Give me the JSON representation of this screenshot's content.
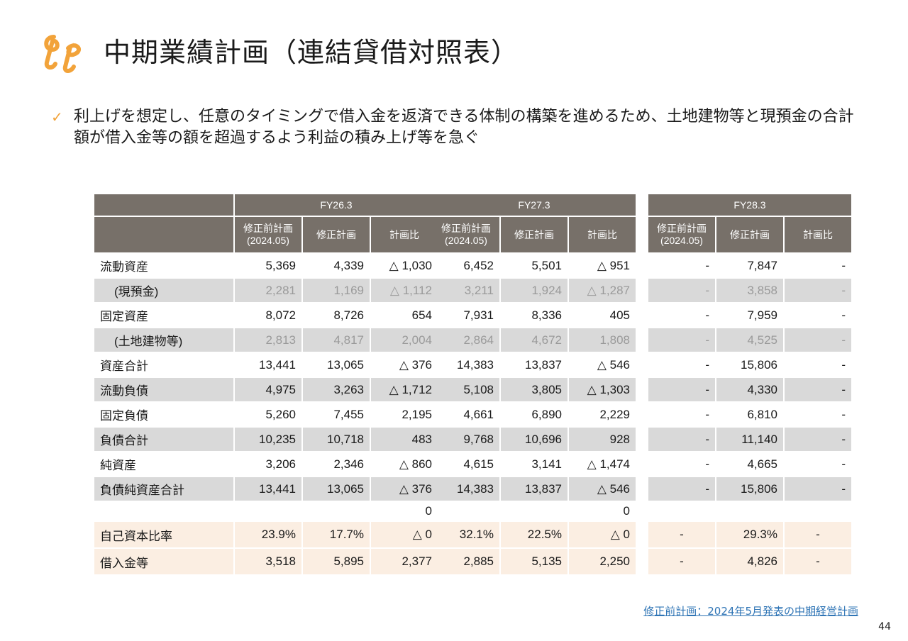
{
  "header": {
    "title": "中期業績計画（連結貸借対照表）"
  },
  "bullet": {
    "text": "利上げを想定し、任意のタイミングで借入金を返済できる体制の構築を進めるため、土地建物等と現預金の合計額が借入金等の額を超過するよう利益の積み上げ等を急ぐ"
  },
  "columns": {
    "pre": "修正前計画",
    "pre_date": "(2024.05)",
    "rev": "修正計画",
    "ratio": "計画比"
  },
  "years": [
    "FY26.3",
    "FY27.3",
    "FY28.3"
  ],
  "rows": [
    {
      "label": "流動資産",
      "style": "white",
      "v": [
        [
          "5,369",
          "4,339",
          "△ 1,030"
        ],
        [
          "6,452",
          "5,501",
          "△ 951"
        ],
        [
          "-",
          "7,847",
          "-"
        ]
      ]
    },
    {
      "label": "(現預金)",
      "style": "gray-sub",
      "v": [
        [
          "2,281",
          "1,169",
          "△ 1,112"
        ],
        [
          "3,211",
          "1,924",
          "△ 1,287"
        ],
        [
          "-",
          "3,858",
          "-"
        ]
      ]
    },
    {
      "label": "固定資産",
      "style": "white",
      "v": [
        [
          "8,072",
          "8,726",
          "654"
        ],
        [
          "7,931",
          "8,336",
          "405"
        ],
        [
          "-",
          "7,959",
          "-"
        ]
      ]
    },
    {
      "label": "(土地建物等)",
      "style": "gray-sub",
      "v": [
        [
          "2,813",
          "4,817",
          "2,004"
        ],
        [
          "2,864",
          "4,672",
          "1,808"
        ],
        [
          "-",
          "4,525",
          "-"
        ]
      ]
    },
    {
      "label": "資産合計",
      "style": "white",
      "v": [
        [
          "13,441",
          "13,065",
          "△ 376"
        ],
        [
          "14,383",
          "13,837",
          "△ 546"
        ],
        [
          "-",
          "15,806",
          "-"
        ]
      ]
    },
    {
      "label": "流動負債",
      "style": "gray",
      "v": [
        [
          "4,975",
          "3,263",
          "△ 1,712"
        ],
        [
          "5,108",
          "3,805",
          "△ 1,303"
        ],
        [
          "-",
          "4,330",
          "-"
        ]
      ]
    },
    {
      "label": "固定負債",
      "style": "white",
      "v": [
        [
          "5,260",
          "7,455",
          "2,195"
        ],
        [
          "4,661",
          "6,890",
          "2,229"
        ],
        [
          "-",
          "6,810",
          "-"
        ]
      ]
    },
    {
      "label": "負債合計",
      "style": "gray",
      "v": [
        [
          "10,235",
          "10,718",
          "483"
        ],
        [
          "9,768",
          "10,696",
          "928"
        ],
        [
          "-",
          "11,140",
          "-"
        ]
      ]
    },
    {
      "label": "純資産",
      "style": "white",
      "v": [
        [
          "3,206",
          "2,346",
          "△ 860"
        ],
        [
          "4,615",
          "3,141",
          "△ 1,474"
        ],
        [
          "-",
          "4,665",
          "-"
        ]
      ]
    },
    {
      "label": "負債純資産合計",
      "style": "gray",
      "v": [
        [
          "13,441",
          "13,065",
          "△ 376"
        ],
        [
          "14,383",
          "13,837",
          "△ 546"
        ],
        [
          "-",
          "15,806",
          "-"
        ]
      ]
    },
    {
      "label": "",
      "style": "blank",
      "v": [
        [
          "",
          "",
          "0"
        ],
        [
          "",
          "",
          "0"
        ],
        [
          "",
          "",
          ""
        ]
      ]
    },
    {
      "label": "自己資本比率",
      "style": "beige",
      "v": [
        [
          "23.9%",
          "17.7%",
          "△ 0"
        ],
        [
          "32.1%",
          "22.5%",
          "△ 0"
        ],
        [
          "-",
          "29.3%",
          "-"
        ]
      ]
    },
    {
      "label": "借入金等",
      "style": "beige",
      "v": [
        [
          "3,518",
          "5,895",
          "2,377"
        ],
        [
          "2,885",
          "5,135",
          "2,250"
        ],
        [
          "-",
          "4,826",
          "-"
        ]
      ]
    }
  ],
  "footnote": "修正前計画：2024年5月発表の中期経営計画",
  "page_number": "44",
  "colors": {
    "header_bg": "#777069",
    "accent": "#f2a33a",
    "gray_row": "#d9d9d9",
    "beige_row": "#fbeee2",
    "link": "#2e74b5"
  }
}
